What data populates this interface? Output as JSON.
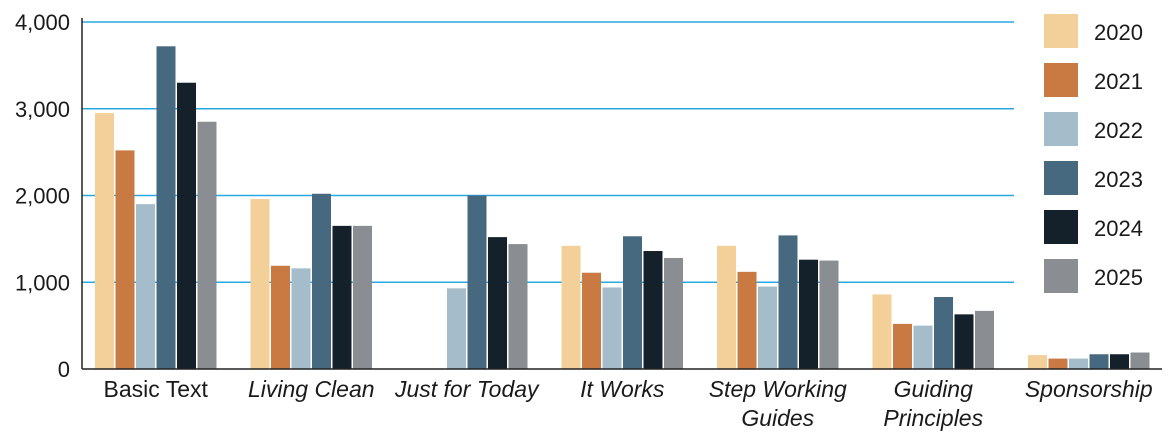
{
  "chart_data": {
    "type": "bar",
    "title": "",
    "xlabel": "",
    "ylabel": "",
    "ylim": [
      0,
      4000
    ],
    "yticks": [
      0,
      1000,
      2000,
      3000,
      4000
    ],
    "ytick_labels": [
      "0",
      "1,000",
      "2,000",
      "3,000",
      "4,000"
    ],
    "grid": "horizontal",
    "legend_position": "right",
    "categories": [
      {
        "lines": [
          "Basic Text"
        ],
        "italic": false
      },
      {
        "lines": [
          "Living Clean"
        ],
        "italic": true
      },
      {
        "lines": [
          "Just for Today"
        ],
        "italic": true
      },
      {
        "lines": [
          "It Works"
        ],
        "italic": true
      },
      {
        "lines": [
          "Step Working",
          "Guides"
        ],
        "italic": true
      },
      {
        "lines": [
          "Guiding",
          "Principles"
        ],
        "italic": true
      },
      {
        "lines": [
          "Sponsorship"
        ],
        "italic": true
      }
    ],
    "series": [
      {
        "name": "2020",
        "color": "#f3cf9a",
        "values": [
          2950,
          1960,
          null,
          1420,
          1420,
          860,
          160
        ]
      },
      {
        "name": "2021",
        "color": "#c87a42",
        "values": [
          2520,
          1190,
          null,
          1110,
          1120,
          520,
          120
        ]
      },
      {
        "name": "2022",
        "color": "#a5bccb",
        "values": [
          1900,
          1160,
          930,
          940,
          950,
          500,
          120
        ]
      },
      {
        "name": "2023",
        "color": "#46697f",
        "values": [
          3720,
          2020,
          2000,
          1530,
          1540,
          830,
          170
        ]
      },
      {
        "name": "2024",
        "color": "#14212b",
        "values": [
          3300,
          1650,
          1520,
          1360,
          1260,
          630,
          170
        ]
      },
      {
        "name": "2025",
        "color": "#8a8d92",
        "values": [
          2850,
          1650,
          1440,
          1280,
          1250,
          670,
          190
        ]
      }
    ]
  }
}
